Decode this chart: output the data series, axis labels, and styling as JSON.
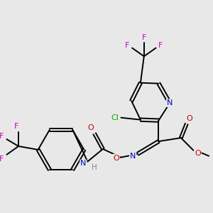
{
  "background_color": "#e8e8e8",
  "atom_colors": {
    "C": "#000000",
    "N": "#0000cc",
    "O": "#cc0000",
    "F": "#cc00cc",
    "Cl": "#00aa00",
    "H": "#888888"
  },
  "bond_color": "#000000",
  "figsize": [
    3.0,
    3.0
  ],
  "dpi": 100
}
